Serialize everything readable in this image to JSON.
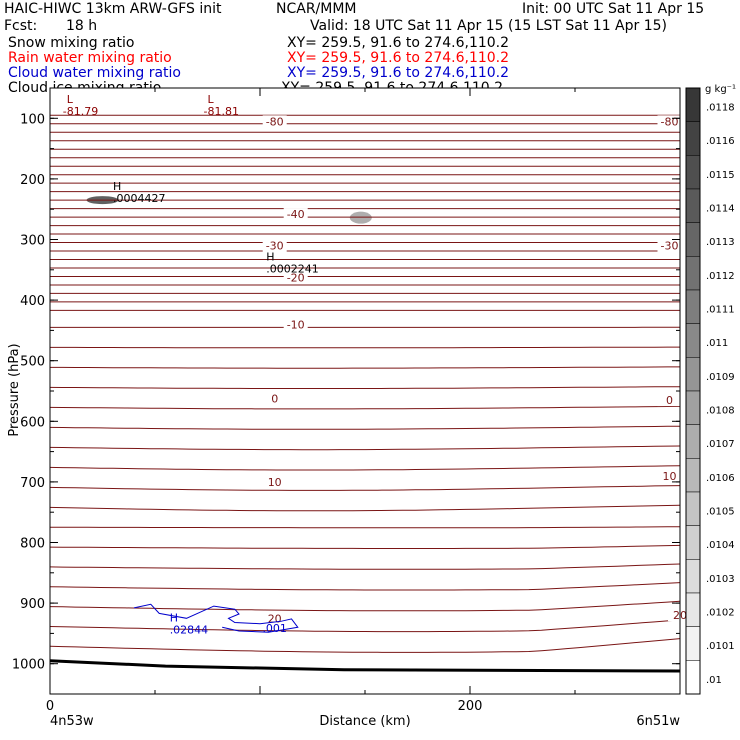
{
  "header": {
    "model": "HAIC-HIWC 13km ARW-GFS init",
    "org": "NCAR/MMM",
    "init": "Init: 00 UTC Sat 11 Apr 15",
    "fcst_label": "Fcst:",
    "fcst_value": "18 h",
    "valid": "Valid: 18 UTC Sat 11 Apr 15 (15 LST Sat 11 Apr 15)"
  },
  "fields": [
    {
      "name": "Snow mixing ratio",
      "xy": "XY= 259.5, 91.6 to 274.6,110.2",
      "color": "#000000"
    },
    {
      "name": "Rain water mixing ratio",
      "xy": "XY= 259.5, 91.6 to 274.6,110.2",
      "color": "#ff0000"
    },
    {
      "name": "Cloud water mixing ratio",
      "xy": "XY= 259.5, 91.6 to 274.6,110.2",
      "color": "#0000cc"
    },
    {
      "name": "Cloud ice mixing ratio",
      "xy": "XY= 259.5, 91.6 to 274.6,110.2",
      "color": "#000000"
    }
  ],
  "chart_data": {
    "type": "cross-section contour",
    "xlabel": "Distance (km)",
    "ylabel": "Pressure (hPa)",
    "xlim": [
      0,
      300
    ],
    "ylim": [
      1050,
      50
    ],
    "x_ticks": [
      "0",
      "200"
    ],
    "y_ticks": [
      "100",
      "200",
      "300",
      "400",
      "500",
      "600",
      "700",
      "800",
      "900",
      "1000"
    ],
    "endpoint_labels": {
      "left": "4n53w",
      "right": "6n51w"
    },
    "colorbar": {
      "unit": "g kg⁻¹",
      "labels": [
        ".0118",
        ".0116",
        ".0115",
        ".0114",
        ".0113",
        ".0112",
        ".0111",
        ".011",
        ".0109",
        ".0108",
        ".0107",
        ".0106",
        ".0105",
        ".0104",
        ".0103",
        ".0102",
        ".0101",
        ".01"
      ]
    },
    "temperature_labels": [
      {
        "text": "-80",
        "x": 107,
        "p": 105
      },
      {
        "text": "-80",
        "x": 295,
        "p": 105
      },
      {
        "text": "-40",
        "x": 117,
        "p": 258
      },
      {
        "text": "-30",
        "x": 107,
        "p": 310
      },
      {
        "text": "-30",
        "x": 295,
        "p": 310
      },
      {
        "text": "-20",
        "x": 117,
        "p": 363
      },
      {
        "text": "-10",
        "x": 117,
        "p": 440
      },
      {
        "text": "0",
        "x": 107,
        "p": 562
      },
      {
        "text": "0",
        "x": 295,
        "p": 565
      },
      {
        "text": "10",
        "x": 107,
        "p": 700
      },
      {
        "text": "10",
        "x": 295,
        "p": 690
      },
      {
        "text": "20",
        "x": 107,
        "p": 925
      },
      {
        "text": "20",
        "x": 300,
        "p": 920
      }
    ],
    "extrema": [
      {
        "mark": "L",
        "value": "-81.79",
        "x": 8,
        "p": 75,
        "color": "#8b0000"
      },
      {
        "mark": "L",
        "value": "-81.81",
        "x": 75,
        "p": 75,
        "color": "#8b0000"
      },
      {
        "mark": "H",
        "value": ".0004427",
        "x": 30,
        "p": 218,
        "color": "#000000"
      },
      {
        "mark": "H",
        "value": ".0002241",
        "x": 103,
        "p": 335,
        "color": "#000000"
      },
      {
        "mark": "H",
        "value": ".02844",
        "x": 57,
        "p": 930,
        "color": "#0000cc"
      }
    ],
    "cloud_water_contour_label": ".001",
    "surface_pressure": [
      {
        "x": 0,
        "p": 995
      },
      {
        "x": 55,
        "p": 1004
      },
      {
        "x": 140,
        "p": 1010
      },
      {
        "x": 300,
        "p": 1012
      }
    ]
  }
}
